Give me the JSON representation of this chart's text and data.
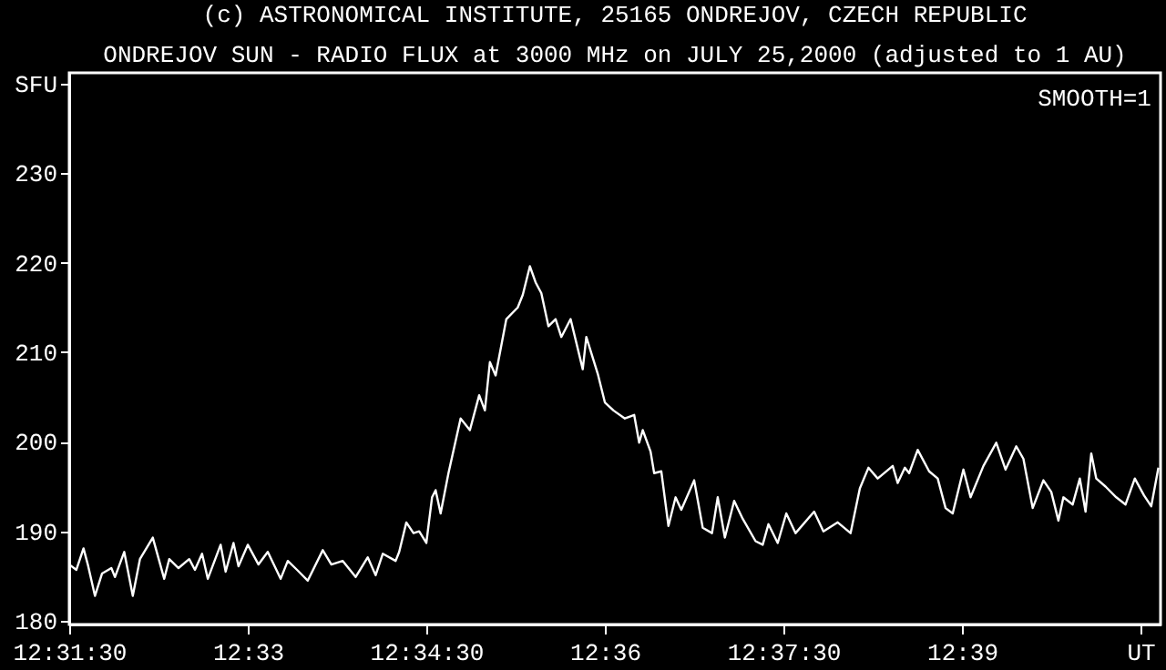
{
  "chart_data": {
    "type": "line",
    "title": "(c) ASTRONOMICAL INSTITUTE, 25165 ONDREJOV, CZECH REPUBLIC",
    "subtitle": "ONDREJOV SUN - RADIO FLUX at 3000 MHz on JULY 25,2000 (adjusted to 1 AU)",
    "annotations": [
      "SMOOTH=1"
    ],
    "x": [
      12.525,
      12.526,
      12.527,
      12.5276,
      12.5286,
      12.5296,
      12.5309,
      12.5314,
      12.5327,
      12.5339,
      12.5349,
      12.5367,
      12.5383,
      12.539,
      12.5403,
      12.5418,
      12.5426,
      12.5436,
      12.5444,
      12.5462,
      12.5469,
      12.548,
      12.5487,
      12.55,
      12.5515,
      12.5528,
      12.5546,
      12.5556,
      12.5569,
      12.5584,
      12.5605,
      12.5617,
      12.5633,
      12.5651,
      12.5668,
      12.5679,
      12.5689,
      12.5707,
      12.5712,
      12.5722,
      12.5732,
      12.574,
      12.575,
      12.5758,
      12.5763,
      12.577,
      12.5781,
      12.5798,
      12.5811,
      12.5824,
      12.5832,
      12.5839,
      12.5847,
      12.5862,
      12.5878,
      12.5885,
      12.5895,
      12.5903,
      12.5911,
      12.5921,
      12.5931,
      12.5939,
      12.5952,
      12.5969,
      12.5974,
      12.599,
      12.6,
      12.6012,
      12.6028,
      12.6041,
      12.6048,
      12.6053,
      12.6064,
      12.6069,
      12.6079,
      12.6089,
      12.6099,
      12.6107,
      12.6125,
      12.6137,
      12.615,
      12.6158,
      12.6168,
      12.6181,
      12.6193,
      12.6211,
      12.6221,
      12.6229,
      12.6242,
      12.6254,
      12.6267,
      12.6293,
      12.6306,
      12.6326,
      12.6344,
      12.6357,
      12.6369,
      12.6382,
      12.6403,
      12.641,
      12.642,
      12.6426,
      12.6438,
      12.6454,
      12.6466,
      12.6477,
      12.6487,
      12.6502,
      12.6512,
      12.653,
      12.6548,
      12.6561,
      12.6576,
      12.6586,
      12.6599,
      12.6614,
      12.6625,
      12.6635,
      12.6642,
      12.6655,
      12.6665,
      12.6673,
      12.6681,
      12.6688,
      12.6701,
      12.6716,
      12.6729,
      12.6742,
      12.6755,
      12.6765,
      12.6775
    ],
    "series": [
      {
        "color": "#ffffff",
        "values": [
          186.3,
          185.7,
          188.1,
          186.3,
          182.8,
          185.3,
          185.9,
          184.9,
          187.7,
          182.8,
          186.9,
          189.3,
          184.7,
          186.9,
          185.9,
          186.9,
          185.7,
          187.5,
          184.7,
          188.5,
          185.5,
          188.7,
          186.1,
          188.5,
          186.3,
          187.7,
          184.7,
          186.7,
          185.7,
          184.5,
          187.9,
          186.3,
          186.7,
          184.9,
          187.1,
          185.1,
          187.5,
          186.7,
          187.7,
          191.0,
          189.8,
          190.0,
          188.7,
          193.8,
          194.6,
          192.0,
          196.5,
          202.6,
          201.3,
          205.2,
          203.5,
          208.9,
          207.4,
          213.7,
          215.0,
          216.4,
          219.6,
          217.8,
          216.6,
          212.9,
          213.7,
          211.7,
          213.7,
          208.1,
          211.7,
          207.6,
          204.4,
          203.5,
          202.6,
          203.0,
          199.9,
          201.3,
          198.9,
          196.5,
          196.7,
          190.6,
          193.8,
          192.4,
          195.7,
          190.4,
          189.8,
          193.8,
          189.3,
          193.4,
          191.4,
          188.9,
          188.5,
          190.8,
          188.7,
          192.0,
          189.8,
          192.2,
          190.0,
          191.0,
          189.8,
          194.8,
          197.1,
          195.9,
          197.3,
          195.4,
          197.1,
          196.5,
          199.1,
          196.7,
          195.9,
          192.6,
          192.0,
          196.9,
          193.8,
          197.3,
          199.9,
          196.9,
          199.5,
          198.1,
          192.6,
          195.7,
          194.4,
          191.2,
          193.8,
          193.0,
          195.9,
          192.2,
          198.7,
          195.9,
          195.0,
          193.8,
          193.0,
          195.9,
          194.0,
          192.8,
          197.1
        ]
      }
    ],
    "xlim": [
      12.525,
      12.6778
    ],
    "xticks": [
      {
        "value": 12.525,
        "label": "12:31:30"
      },
      {
        "value": 12.55,
        "label": "12:33"
      },
      {
        "value": 12.575,
        "label": "12:34:30"
      },
      {
        "value": 12.6,
        "label": "12:36"
      },
      {
        "value": 12.625,
        "label": "12:37:30"
      },
      {
        "value": 12.65,
        "label": "12:39"
      },
      {
        "value": 12.675,
        "label": "UT"
      }
    ],
    "ylim": [
      179.6,
      241.2
    ],
    "yticks": [
      180,
      190,
      200,
      210,
      220,
      230,
      {
        "value": 240,
        "label": "SFU"
      }
    ],
    "grid": false,
    "marker": "none",
    "line_style": "solid"
  }
}
